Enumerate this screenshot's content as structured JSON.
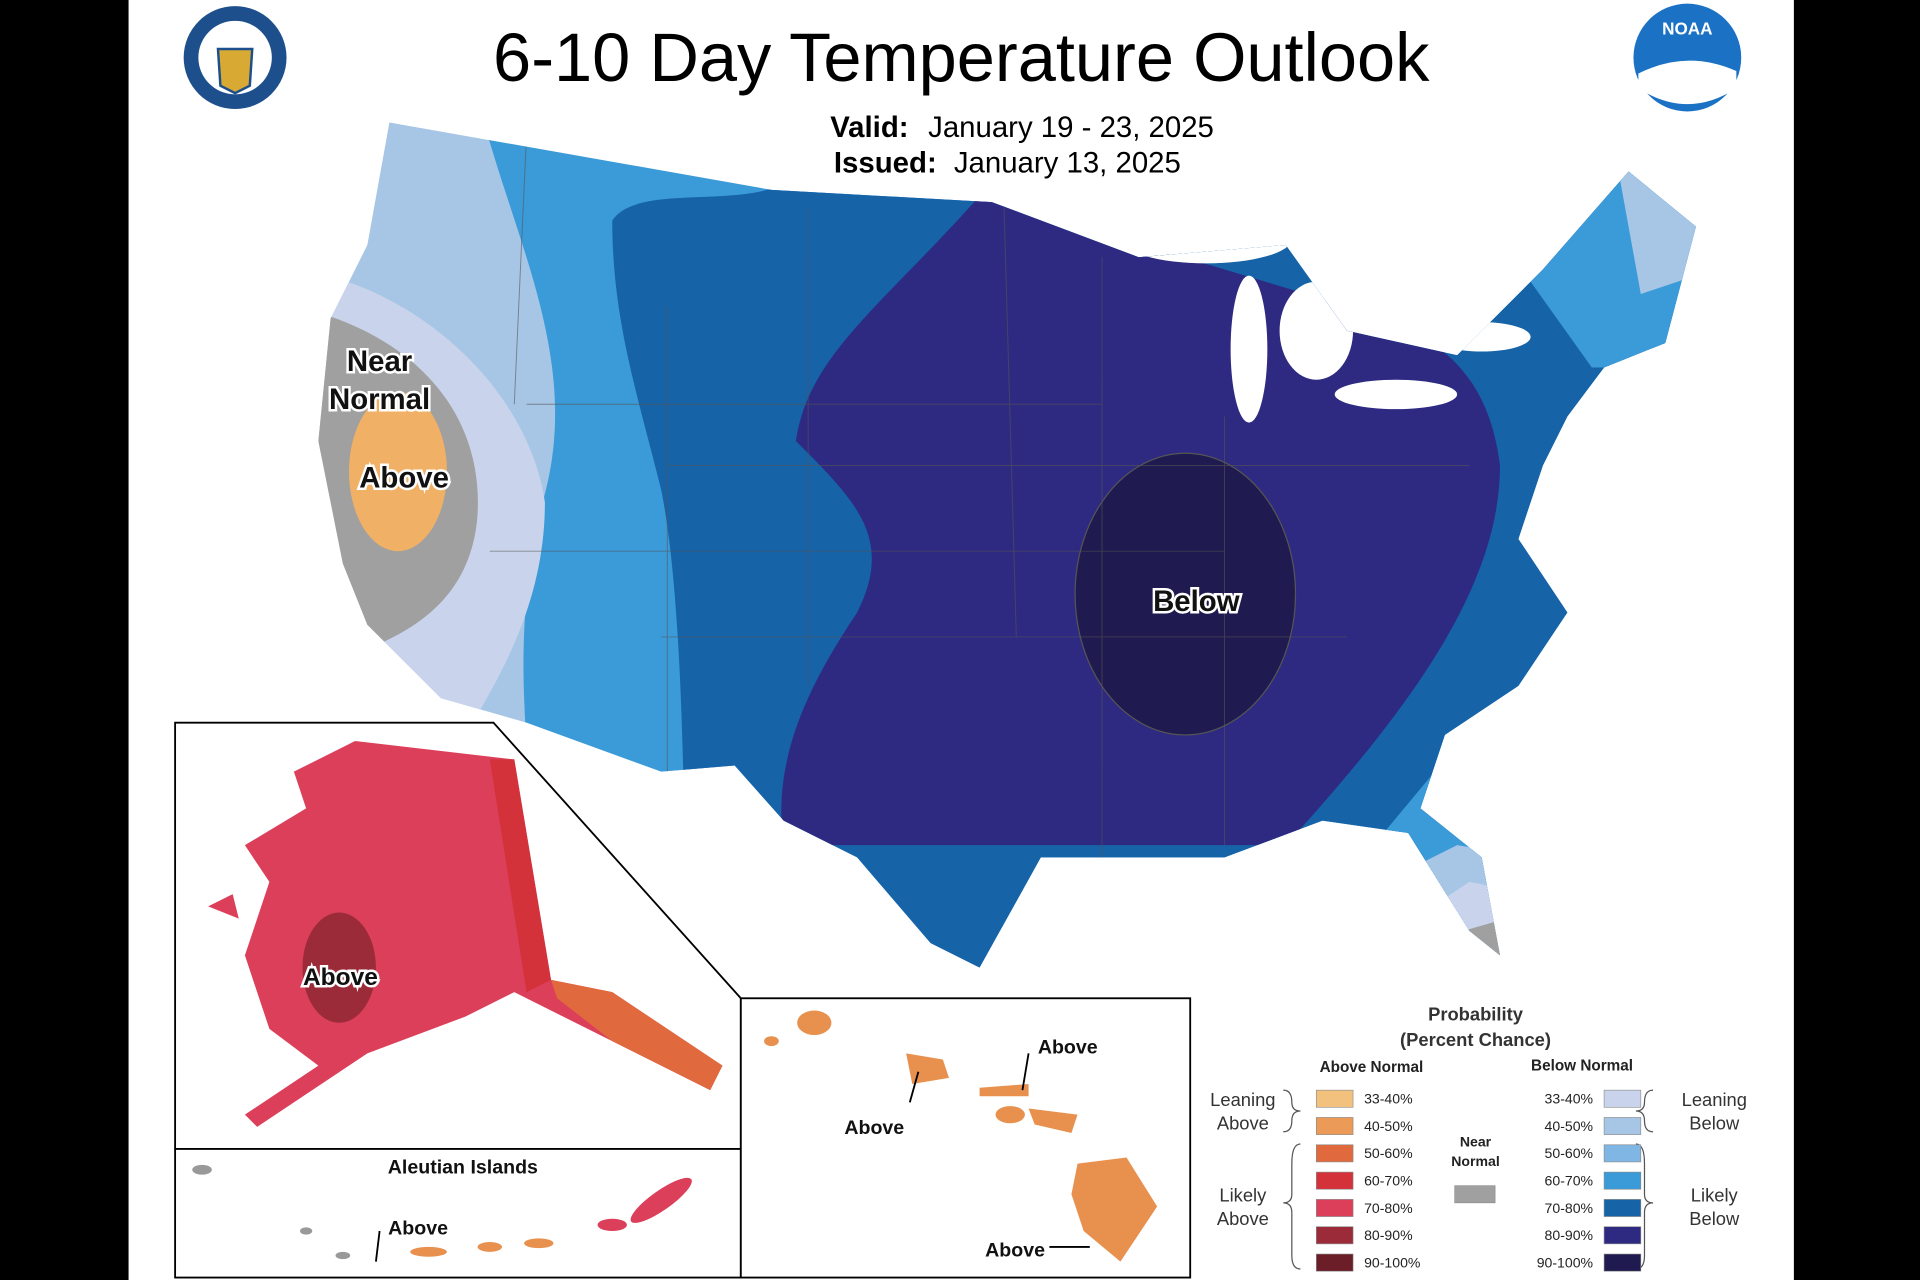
{
  "header": {
    "title": "6-10 Day Temperature Outlook",
    "valid_label": "Valid:",
    "valid": "January 19 - 23, 2025",
    "issued_label": "Issued:",
    "issued": "January 13, 2025"
  },
  "logos": {
    "noaa": "NOAA"
  },
  "map_labels": {
    "near": "Near",
    "normal": "Normal",
    "west_above": "Above",
    "central_below": "Below"
  },
  "insets": {
    "alaska_above": "Above",
    "aleutian_title": "Aleutian Islands",
    "aleutian_above": "Above",
    "hawaii_above_1": "Above",
    "hawaii_above_2": "Above",
    "hawaii_above_3": "Above"
  },
  "legend": {
    "title": "Probability",
    "subtitle": "(Percent Chance)",
    "above_header": "Above Normal",
    "below_header": "Below Normal",
    "above": [
      {
        "label": "33-40%",
        "color": "#f3c17e"
      },
      {
        "label": "40-50%",
        "color": "#eb9a57"
      },
      {
        "label": "50-60%",
        "color": "#e06a3d"
      },
      {
        "label": "60-70%",
        "color": "#d3323a"
      },
      {
        "label": "70-80%",
        "color": "#dc3f5a"
      },
      {
        "label": "80-90%",
        "color": "#9c2b3a"
      },
      {
        "label": "90-100%",
        "color": "#6b1d28"
      }
    ],
    "below": [
      {
        "label": "33-40%",
        "color": "#c9d4ec"
      },
      {
        "label": "40-50%",
        "color": "#a7c6e6"
      },
      {
        "label": "50-60%",
        "color": "#7fb6e3"
      },
      {
        "label": "60-70%",
        "color": "#3b9bd9"
      },
      {
        "label": "70-80%",
        "color": "#1663a8"
      },
      {
        "label": "80-90%",
        "color": "#2e2a82"
      },
      {
        "label": "90-100%",
        "color": "#1f1a4f"
      }
    ],
    "near_normal": {
      "lines": [
        "Near",
        "Normal"
      ],
      "color": "#a0a0a0"
    },
    "leaning_above": [
      "Leaning",
      "Above"
    ],
    "likely_above": [
      "Likely",
      "Above"
    ],
    "leaning_below": [
      "Leaning",
      "Below"
    ],
    "likely_below": [
      "Likely",
      "Below"
    ]
  }
}
